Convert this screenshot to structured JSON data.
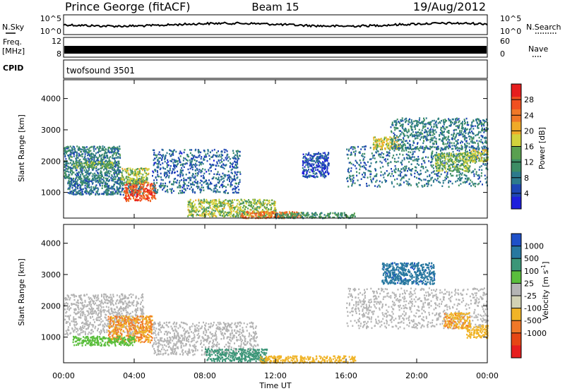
{
  "header": {
    "station": "Prince George (fitACF)",
    "beam": "Beam 15",
    "date": "19/Aug/2012"
  },
  "top_panels": {
    "nsky_label": "N.Sky",
    "nsearch_label": "N.Search",
    "noise_ticks": [
      "10^5",
      "10^0"
    ],
    "freq_label_1": "Freq.",
    "freq_label_2": "[MHz]",
    "freq_ticks": [
      "12",
      "8"
    ],
    "nave_label": "Nave",
    "nave_ticks": [
      "60",
      "0"
    ],
    "cpid_label": "CPID",
    "cpid_value": "twofsound 3501"
  },
  "time_axis": {
    "label": "Time UT",
    "ticks": [
      "00:00",
      "04:00",
      "08:00",
      "12:00",
      "16:00",
      "20:00",
      "00:00"
    ]
  },
  "colors": {
    "power_scale": [
      "#1e1edc",
      "#1e46b4",
      "#2d7a8c",
      "#3c8c64",
      "#5aa050",
      "#d2d23c",
      "#f0aa28",
      "#f07828",
      "#f05020",
      "#e61e1e"
    ],
    "velocity_scale": [
      "#1e50c8",
      "#2878a0",
      "#3c9678",
      "#5abe3c",
      "#b4b4b4",
      "#d2d2b4",
      "#f0b428",
      "#f07828",
      "#e64614",
      "#e61e1e"
    ]
  },
  "chart_data": [
    {
      "type": "heatmap",
      "title": "Power",
      "xlabel": "Time UT",
      "ylabel": "Slant Range [km]",
      "xlim_hours": [
        0,
        24
      ],
      "ylim_km": [
        180,
        4600
      ],
      "y_ticks": [
        1000,
        2000,
        3000,
        4000
      ],
      "colorbar": {
        "label": "Power [dB]",
        "range": [
          0,
          32
        ],
        "ticks": [
          "4",
          "8",
          "12",
          "16",
          "20",
          "24",
          "28"
        ]
      },
      "regions": [
        {
          "t0": 0.0,
          "t1": 3.2,
          "r0": 1450,
          "r1": 2500,
          "value": 9
        },
        {
          "t0": 0.5,
          "t1": 2.8,
          "r0": 1800,
          "r1": 2000,
          "value": 14
        },
        {
          "t0": 0.2,
          "t1": 4.5,
          "r0": 950,
          "r1": 1450,
          "value": 8
        },
        {
          "t0": 3.4,
          "t1": 5.2,
          "r0": 750,
          "r1": 1350,
          "value": 27
        },
        {
          "t0": 3.2,
          "t1": 4.8,
          "r0": 1300,
          "r1": 1800,
          "value": 16
        },
        {
          "t0": 5.0,
          "t1": 10.0,
          "r0": 1000,
          "r1": 2400,
          "value": 7
        },
        {
          "t0": 7.0,
          "t1": 12.0,
          "r0": 250,
          "r1": 800,
          "value": 16
        },
        {
          "t0": 10.0,
          "t1": 13.5,
          "r0": 200,
          "r1": 420,
          "value": 25
        },
        {
          "t0": 12.0,
          "t1": 16.5,
          "r0": 200,
          "r1": 380,
          "value": 12
        },
        {
          "t0": 13.5,
          "t1": 15.0,
          "r0": 1500,
          "r1": 2300,
          "value": 5
        },
        {
          "t0": 16.0,
          "t1": 24.0,
          "r0": 1200,
          "r1": 2500,
          "value": 8
        },
        {
          "t0": 17.5,
          "t1": 19.0,
          "r0": 2400,
          "r1": 2800,
          "value": 18
        },
        {
          "t0": 21.0,
          "t1": 23.0,
          "r0": 1700,
          "r1": 2300,
          "value": 15
        },
        {
          "t0": 18.5,
          "t1": 24.0,
          "r0": 2400,
          "r1": 3400,
          "value": 9
        },
        {
          "t0": 23.0,
          "t1": 24.0,
          "r0": 2000,
          "r1": 2400,
          "value": 17
        }
      ]
    },
    {
      "type": "heatmap",
      "title": "Velocity",
      "xlabel": "Time UT",
      "ylabel": "Slant Range [km]",
      "xlim_hours": [
        0,
        24
      ],
      "ylim_km": [
        180,
        4600
      ],
      "y_ticks": [
        1000,
        2000,
        3000,
        4000
      ],
      "colorbar": {
        "label": "Velocity [m s^-1]",
        "ticks": [
          "1000",
          "500",
          "100",
          "25",
          "-25",
          "-100",
          "-500",
          "-1000"
        ]
      },
      "regions": [
        {
          "t0": 0.0,
          "t1": 4.5,
          "r0": 1100,
          "r1": 2400,
          "value": 0
        },
        {
          "t0": 2.5,
          "t1": 5.0,
          "r0": 850,
          "r1": 1700,
          "value": -300
        },
        {
          "t0": 0.5,
          "t1": 4.0,
          "r0": 750,
          "r1": 1050,
          "value": 40
        },
        {
          "t0": 5.0,
          "t1": 11.0,
          "r0": 450,
          "r1": 1500,
          "value": 10
        },
        {
          "t0": 8.0,
          "t1": 11.5,
          "r0": 250,
          "r1": 650,
          "value": 120
        },
        {
          "t0": 11.0,
          "t1": 16.5,
          "r0": 200,
          "r1": 420,
          "value": -150
        },
        {
          "t0": 16.0,
          "t1": 24.0,
          "r0": 1300,
          "r1": 2600,
          "value": 5
        },
        {
          "t0": 18.0,
          "t1": 21.0,
          "r0": 2700,
          "r1": 3400,
          "value": 600
        },
        {
          "t0": 21.5,
          "t1": 23.0,
          "r0": 1300,
          "r1": 1800,
          "value": -250
        },
        {
          "t0": 22.8,
          "t1": 24.0,
          "r0": 1000,
          "r1": 1400,
          "value": -150
        }
      ]
    }
  ]
}
